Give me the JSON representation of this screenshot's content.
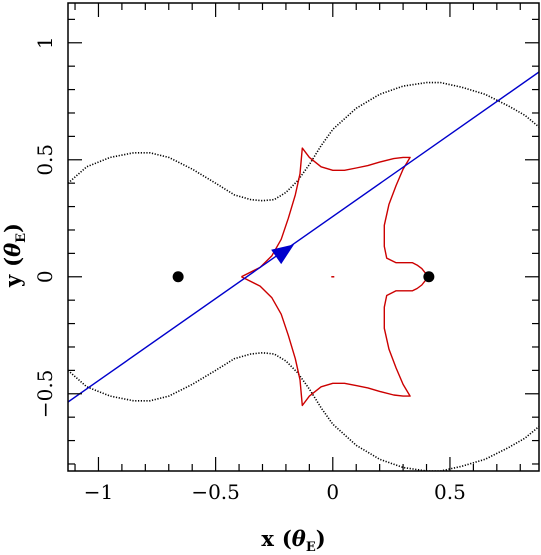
{
  "chart_data": {
    "type": "line",
    "title": "",
    "xlabel": "x",
    "xlabel_unit": "θ",
    "xlabel_unit_sub": "E",
    "ylabel": "y",
    "ylabel_unit": "θ",
    "ylabel_unit_sub": "E",
    "xlim": [
      -1.13,
      0.88
    ],
    "ylim": [
      -0.83,
      1.17
    ],
    "x_major_ticks": [
      -1,
      -0.5,
      0,
      0.5
    ],
    "x_tick_labels": [
      "−1",
      "−0.5",
      "0",
      "0.5"
    ],
    "x_minor_step": 0.1,
    "y_major_ticks": [
      -0.5,
      0,
      0.5,
      1
    ],
    "y_tick_labels": [
      "−0.5",
      "0",
      "0.5",
      "1"
    ],
    "y_minor_step": 0.1,
    "grid": false,
    "lenses": [
      {
        "x": -0.66,
        "y": 0.0
      },
      {
        "x": 0.41,
        "y": 0.0
      }
    ],
    "series": [
      {
        "kind": "critical_curve",
        "color": "#000000",
        "style": "dotted",
        "x": [
          -1.13,
          -1.05,
          -0.95,
          -0.85,
          -0.78,
          -0.7,
          -0.6,
          -0.5,
          -0.42,
          -0.35,
          -0.3,
          -0.25,
          -0.2,
          -0.15,
          -0.1,
          -0.05,
          0.0,
          0.1,
          0.2,
          0.3,
          0.4,
          0.46,
          0.55,
          0.65,
          0.75,
          0.82,
          0.88
        ],
        "y": [
          0.4,
          0.47,
          0.51,
          0.53,
          0.53,
          0.51,
          0.46,
          0.4,
          0.35,
          0.33,
          0.325,
          0.33,
          0.36,
          0.41,
          0.48,
          0.56,
          0.63,
          0.72,
          0.78,
          0.815,
          0.83,
          0.83,
          0.81,
          0.78,
          0.73,
          0.69,
          0.64
        ]
      },
      {
        "kind": "critical_curve",
        "color": "#000000",
        "style": "dotted",
        "x": [
          -1.13,
          -1.05,
          -0.95,
          -0.85,
          -0.78,
          -0.7,
          -0.6,
          -0.5,
          -0.42,
          -0.35,
          -0.3,
          -0.25,
          -0.2,
          -0.15,
          -0.1,
          -0.05,
          0.0,
          0.1,
          0.2,
          0.3,
          0.4,
          0.46,
          0.55,
          0.65,
          0.75,
          0.82,
          0.88
        ],
        "y": [
          -0.4,
          -0.47,
          -0.51,
          -0.53,
          -0.53,
          -0.51,
          -0.46,
          -0.4,
          -0.35,
          -0.33,
          -0.325,
          -0.33,
          -0.36,
          -0.41,
          -0.48,
          -0.56,
          -0.63,
          -0.72,
          -0.78,
          -0.815,
          -0.83,
          -0.83,
          -0.81,
          -0.78,
          -0.73,
          -0.69,
          -0.64
        ]
      },
      {
        "kind": "caustic",
        "color": "#cc0000",
        "style": "solid",
        "x": [
          -0.39,
          -0.31,
          -0.26,
          -0.22,
          -0.19,
          -0.16,
          -0.14,
          -0.13,
          -0.1,
          -0.05,
          0.0,
          0.05,
          0.1,
          0.15,
          0.2,
          0.26,
          0.3,
          0.33,
          0.3,
          0.27,
          0.24,
          0.22,
          0.22,
          0.23,
          0.27,
          0.31,
          0.34,
          0.36,
          0.38,
          0.4,
          0.4,
          0.38,
          0.36,
          0.34,
          0.31,
          0.27,
          0.23,
          0.22,
          0.22,
          0.24,
          0.27,
          0.3,
          0.33,
          0.3,
          0.26,
          0.2,
          0.15,
          0.1,
          0.05,
          0.0,
          -0.05,
          -0.1,
          -0.13,
          -0.14,
          -0.16,
          -0.19,
          -0.22,
          -0.26,
          -0.31,
          -0.39
        ],
        "y": [
          0.0,
          0.04,
          0.09,
          0.16,
          0.25,
          0.35,
          0.44,
          0.55,
          0.51,
          0.47,
          0.455,
          0.455,
          0.465,
          0.475,
          0.49,
          0.505,
          0.51,
          0.51,
          0.46,
          0.39,
          0.31,
          0.22,
          0.13,
          0.08,
          0.06,
          0.06,
          0.06,
          0.05,
          0.035,
          0.01,
          -0.01,
          -0.035,
          -0.05,
          -0.06,
          -0.06,
          -0.06,
          -0.08,
          -0.13,
          -0.22,
          -0.31,
          -0.39,
          -0.46,
          -0.51,
          -0.51,
          -0.505,
          -0.49,
          -0.475,
          -0.465,
          -0.455,
          -0.455,
          -0.47,
          -0.51,
          -0.55,
          -0.44,
          -0.35,
          -0.25,
          -0.16,
          -0.09,
          -0.04,
          0.0
        ]
      },
      {
        "kind": "source_trajectory",
        "color": "#0000cc",
        "style": "solid",
        "x": [
          -1.13,
          0.88
        ],
        "y": [
          -0.535,
          0.875
        ]
      }
    ],
    "caustic_center_mark": {
      "x": 0.0,
      "y": 0.0,
      "color": "#cc0000"
    },
    "trajectory_arrow": {
      "x": -0.17,
      "y": 0.135,
      "color": "#0000cc"
    }
  }
}
